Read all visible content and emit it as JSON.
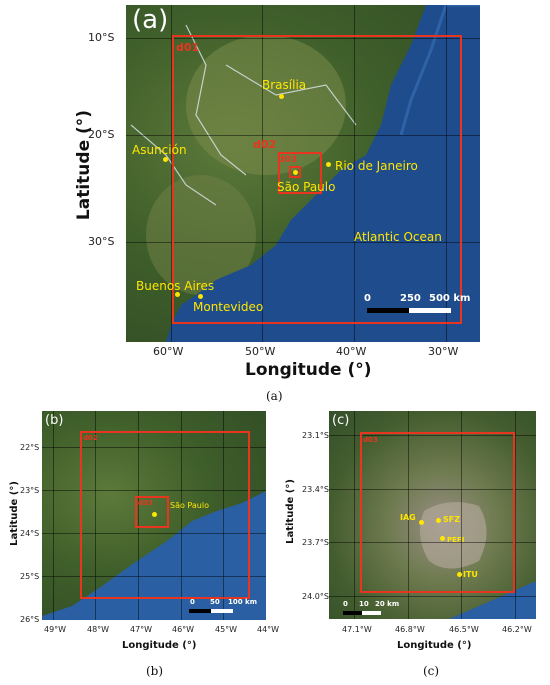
{
  "panel_a": {
    "letter": "(a)",
    "ylabel": "Latitude (°)",
    "xlabel": "Longitude (°)",
    "yticks": [
      "10°S",
      "20°S",
      "30°S"
    ],
    "xticks": [
      "60°W",
      "50°W",
      "40°W",
      "30°W"
    ],
    "domains": [
      "d01",
      "d02",
      "d03"
    ],
    "cities": [
      "Brasília",
      "Asunción",
      "São Paulo",
      "Rio de Janeiro",
      "Buenos Aires",
      "Montevideo"
    ],
    "ocean_label": "Atlantic Ocean",
    "scale": [
      "0",
      "250",
      "500 km"
    ]
  },
  "panel_b": {
    "letter": "(b)",
    "ylabel": "Latitude (°)",
    "xlabel": "Longitude (°)",
    "yticks": [
      "22°S",
      "23°S",
      "24°S",
      "25°S",
      "26°S"
    ],
    "xticks": [
      "49°W",
      "48°W",
      "47°W",
      "46°W",
      "45°W",
      "44°W"
    ],
    "domains": [
      "d02",
      "d03"
    ],
    "city": "São Paulo",
    "scale": [
      "0",
      "50",
      "100 km"
    ]
  },
  "panel_c": {
    "letter": "(c)",
    "ylabel": "Latitude (°)",
    "xlabel": "Longitude (°)",
    "yticks": [
      "23.1°S",
      "23.4°S",
      "23.7°S",
      "24.0°S"
    ],
    "xticks": [
      "47.1°W",
      "46.8°W",
      "46.5°W",
      "46.2°W"
    ],
    "domain": "d03",
    "stations": [
      "IAG",
      "SFZ",
      "PEFI",
      "ITU"
    ],
    "scale": [
      "0",
      "10",
      "20 km"
    ]
  },
  "captions": [
    "(a)",
    "(b)",
    "(c)"
  ],
  "colors": {
    "domain": "#e8351f",
    "city": "#ffe600",
    "ocean": "#1d4a8a",
    "land": "#3e5e2a"
  }
}
